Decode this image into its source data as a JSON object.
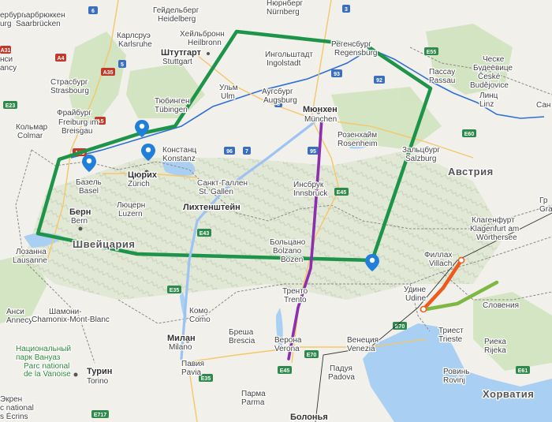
{
  "cities": [
    {
      "name": "Нюрнберг",
      "latin": "Nürnberg",
      "big": false
    },
    {
      "name": "Саарбрюккен",
      "latin": "Saarbrücken",
      "big": false
    },
    {
      "name": "Гейдельберг",
      "latin": "Heidelberg",
      "big": false
    },
    {
      "name": "Хейльбронн",
      "latin": "Heilbronn",
      "big": false
    },
    {
      "name": "Регенсбург",
      "latin": "Regensburg",
      "big": false
    },
    {
      "name": "Карлсруэ",
      "latin": "Karlsruhe",
      "big": false
    },
    {
      "name": "Штутгарт",
      "latin": "Stuttgart",
      "big": true
    },
    {
      "name": "Ингольштадт",
      "latin": "Ingolstadt",
      "big": false
    },
    {
      "name": "Страсбург",
      "latin": "Strasbourg",
      "big": false
    },
    {
      "name": "Ульм",
      "latin": "Ulm",
      "big": false
    },
    {
      "name": "Аугсбург",
      "latin": "Augsburg",
      "big": false
    },
    {
      "name": "Тюбинген",
      "latin": "Tübingen",
      "big": false
    },
    {
      "name": "Пассау",
      "latin": "Passau",
      "big": false
    },
    {
      "name": "Ческе Будеёвице",
      "latin": "České Budějovice",
      "big": false
    },
    {
      "name": "Линц",
      "latin": "Linz",
      "big": false
    },
    {
      "name": "Фрайбург",
      "latin": "Freiburg im Breisgau",
      "big": false
    },
    {
      "name": "Мюнхен",
      "latin": "München",
      "big": true
    },
    {
      "name": "Кольмар",
      "latin": "Colmar",
      "big": false
    },
    {
      "name": "Розенхайм",
      "latin": "Rosenheim",
      "big": false
    },
    {
      "name": "Констанц",
      "latin": "Konstanz",
      "big": false
    },
    {
      "name": "Зальцбург",
      "latin": "Salzburg",
      "big": false
    },
    {
      "name": "Базель",
      "latin": "Basel",
      "big": false
    },
    {
      "name": "Цюрих",
      "latin": "Zürich",
      "big": true
    },
    {
      "name": "Санкт-Галлен",
      "latin": "St. Gallen",
      "big": false
    },
    {
      "name": "Инсбрук",
      "latin": "Innsbruck",
      "big": false
    },
    {
      "name": "Лихтенштейн",
      "latin": "",
      "big": true
    },
    {
      "name": "Люцерн",
      "latin": "Luzern",
      "big": false
    },
    {
      "name": "Берн",
      "latin": "Bern",
      "big": true
    },
    {
      "name": "Больцано",
      "latin": "Bolzano Bozen",
      "big": false
    },
    {
      "name": "Клагенфурт",
      "latin": "Klagenfurt am Wörthersee",
      "big": false
    },
    {
      "name": "Филлах",
      "latin": "Villach",
      "big": false
    },
    {
      "name": "Лозанна",
      "latin": "Lausanne",
      "big": false
    },
    {
      "name": "Удине",
      "latin": "Udine",
      "big": false
    },
    {
      "name": "Тренто",
      "latin": "Trento",
      "big": false
    },
    {
      "name": "Анси",
      "latin": "Annecy",
      "big": false
    },
    {
      "name": "Шамони-Монблан",
      "latin": "Chamonix-Mont-Blanc",
      "big": false
    },
    {
      "name": "Комо",
      "latin": "Como",
      "big": false
    },
    {
      "name": "Триест",
      "latin": "Trieste",
      "big": false
    },
    {
      "name": "Бреша",
      "latin": "Brescia",
      "big": false
    },
    {
      "name": "Милан",
      "latin": "Milano",
      "big": true
    },
    {
      "name": "Верона",
      "latin": "Verona",
      "big": false
    },
    {
      "name": "Венеция",
      "latin": "Venezia",
      "big": false
    },
    {
      "name": "Риека",
      "latin": "Rijeka",
      "big": false
    },
    {
      "name": "Ровинь",
      "latin": "Rovinj",
      "big": false
    },
    {
      "name": "Падуя",
      "latin": "Padova",
      "big": false
    },
    {
      "name": "Турин",
      "latin": "Torino",
      "big": true
    },
    {
      "name": "Павия",
      "latin": "Pavia",
      "big": false
    },
    {
      "name": "Парма",
      "latin": "Parma",
      "big": false
    },
    {
      "name": "Болонья",
      "latin": "",
      "big": true
    },
    {
      "name": "Гр",
      "latin": "Gra",
      "big": false
    },
    {
      "name": "Сан",
      "latin": "",
      "big": false
    }
  ],
  "edge_labels": [
    "ербург",
    "urg",
    "нси",
    "ancy",
    "Экрен",
    "c national",
    "s Écrins"
  ],
  "countries": [
    "Австрия",
    "Швейцария",
    "Хорватия"
  ],
  "partial_labels": [
    "Словения"
  ],
  "parks": [
    {
      "name": "Национальный парк Вануаз",
      "latin": "Parc national de la Vanoise"
    }
  ],
  "roads": [
    "6",
    "A4",
    "A35",
    "A31",
    "E23",
    "5",
    "A35",
    "A5",
    "8",
    "96",
    "7",
    "93",
    "92",
    "3",
    "95",
    "E45",
    "E43",
    "E35",
    "E70",
    "E70",
    "E45",
    "E35",
    "E717",
    "E60",
    "E55",
    "E61"
  ],
  "colors": {
    "land": "#f1f0ea",
    "forest": "#cfe3be",
    "water": "#a9cff2",
    "river": "#2f6fd6",
    "border": "#8a8a8a",
    "route_zone": "#1d9449",
    "route_milan": "#9dc3f5",
    "route_verona": "#8b2fb0",
    "route_villach": "#ef5a1c",
    "route_slovenia": "#7fb743",
    "marker": "#1f7fd9"
  },
  "icons": [
    "location-pin-icon"
  ]
}
